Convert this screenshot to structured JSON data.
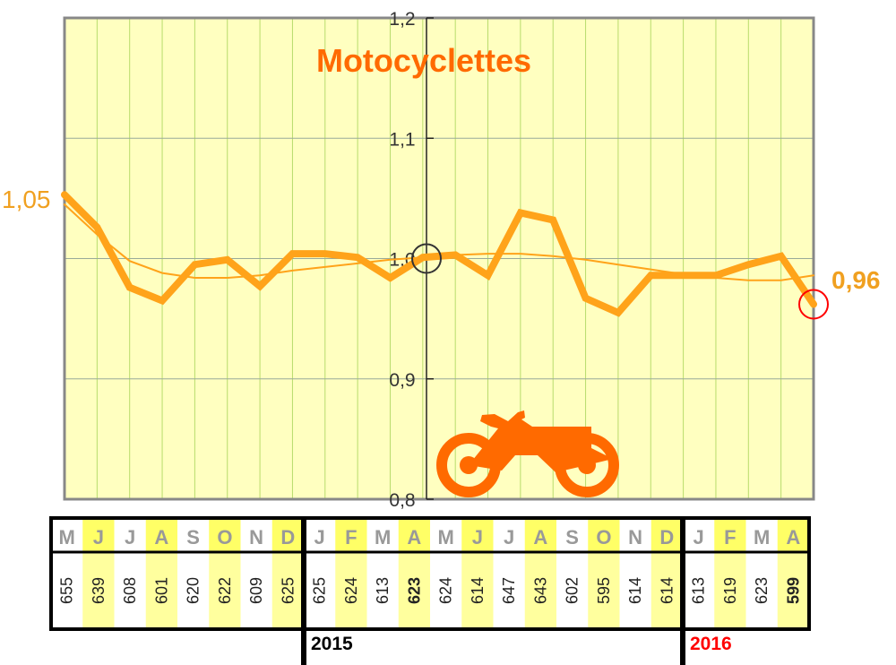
{
  "chart_data": {
    "type": "line",
    "title": "Motocyclettes",
    "ylim": [
      0.8,
      1.2
    ],
    "yticks": [
      "0,8",
      "0,9",
      "1,0",
      "1,1",
      "1,2"
    ],
    "ytick_values": [
      0.8,
      0.9,
      1.0,
      1.1,
      1.2
    ],
    "grid": true,
    "series": [
      {
        "values": [
          1.053,
          1.026,
          0.976,
          0.965,
          0.995,
          0.999,
          0.977,
          1.004,
          1.004,
          1.001,
          0.984,
          1.001,
          1.003,
          0.986,
          1.038,
          1.032,
          0.967,
          0.955,
          0.986,
          0.986,
          0.986,
          0.995,
          1.002,
          0.962
        ],
        "color": "#ffa31a",
        "width": 8
      },
      {
        "values": [
          1.045,
          1.02,
          0.998,
          0.988,
          0.984,
          0.984,
          0.986,
          0.99,
          0.993,
          0.996,
          0.999,
          1.001,
          1.003,
          1.004,
          1.004,
          1.002,
          0.999,
          0.995,
          0.991,
          0.987,
          0.984,
          0.982,
          0.982,
          0.986
        ],
        "color": "#ffa31a",
        "width": 2
      }
    ],
    "start_label": "1,05",
    "end_label": "0,96",
    "marked_points": [
      {
        "index": 11,
        "color": "#333333"
      },
      {
        "index": 23,
        "color": "#ff0000"
      }
    ]
  },
  "table": {
    "months": [
      "M",
      "J",
      "J",
      "A",
      "S",
      "O",
      "N",
      "D",
      "J",
      "F",
      "M",
      "A",
      "M",
      "J",
      "J",
      "A",
      "S",
      "O",
      "N",
      "D",
      "J",
      "F",
      "M",
      "A"
    ],
    "values": [
      "655",
      "639",
      "608",
      "601",
      "620",
      "622",
      "609",
      "625",
      "625",
      "624",
      "613",
      "623",
      "624",
      "614",
      "647",
      "643",
      "602",
      "595",
      "614",
      "614",
      "613",
      "619",
      "623",
      "599"
    ],
    "bold_indices": [
      11,
      23
    ],
    "red_indices": [
      23
    ],
    "years": [
      "2015",
      "2016"
    ]
  },
  "colors": {
    "plot_bg": "#ffffc0",
    "line": "#ffa31a",
    "title": "#ff6a00",
    "stripe": "#ffff9e",
    "header_stripe": "#ffff66",
    "red": "#ff0000",
    "icon": "#ff6a00"
  },
  "icon": "motorcycle-icon"
}
